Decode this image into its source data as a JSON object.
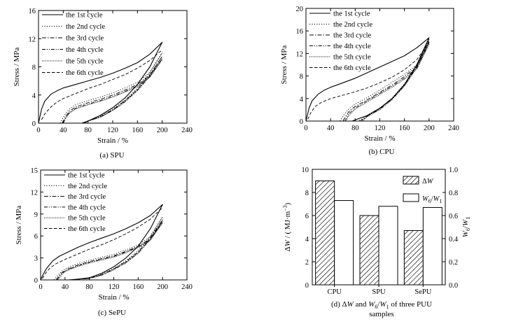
{
  "chart_data": [
    {
      "id": "a",
      "type": "line",
      "caption": "(a) SPU",
      "xlabel": "Strain / %",
      "ylabel": "Stress / MPa",
      "xlim": [
        0,
        240
      ],
      "ylim": [
        0,
        16
      ],
      "xticks": [
        "0",
        "40",
        "80",
        "120",
        "160",
        "200",
        "240"
      ],
      "yticks": [
        "0",
        "4",
        "8",
        "12",
        "16"
      ],
      "legend_position": "top-left",
      "series": [
        {
          "name": "the 1st cycle",
          "style": "solid",
          "x": [
            0,
            5,
            10,
            20,
            30,
            40,
            60,
            80,
            100,
            120,
            140,
            160,
            180,
            200,
            200,
            180,
            160,
            140,
            120,
            100,
            80,
            70
          ],
          "y": [
            0,
            2.0,
            3.1,
            4.1,
            4.6,
            5.0,
            5.5,
            6.0,
            6.5,
            7.1,
            7.8,
            8.6,
            9.8,
            11.5,
            11.5,
            8.0,
            5.5,
            3.6,
            2.2,
            1.1,
            0.3,
            0
          ]
        },
        {
          "name": "the 2nd cycle",
          "style": "dotted",
          "x": [
            35,
            40,
            45,
            50,
            60,
            80,
            100,
            120,
            140,
            160,
            180,
            200,
            200,
            180,
            160,
            140,
            120,
            100,
            80,
            70
          ],
          "y": [
            0,
            0.8,
            1.5,
            2.0,
            2.6,
            3.2,
            3.7,
            4.3,
            5.0,
            5.8,
            7.2,
            10.0,
            10.0,
            7.2,
            5.0,
            3.3,
            2.0,
            1.0,
            0.3,
            0
          ]
        },
        {
          "name": "the 3rd cycle",
          "style": "dashdot",
          "x": [
            38,
            45,
            50,
            60,
            80,
            100,
            120,
            140,
            160,
            180,
            200,
            200,
            180,
            160,
            140,
            120,
            100,
            80,
            72
          ],
          "y": [
            0,
            1.1,
            1.7,
            2.3,
            2.9,
            3.4,
            4.0,
            4.7,
            5.5,
            6.8,
            9.5,
            9.5,
            6.9,
            4.8,
            3.2,
            1.9,
            0.9,
            0.3,
            0
          ]
        },
        {
          "name": "the 4th cycle",
          "style": "dashdotdot",
          "x": [
            40,
            45,
            50,
            60,
            80,
            100,
            120,
            140,
            160,
            180,
            200,
            200,
            180,
            160,
            140,
            120,
            100,
            80,
            74
          ],
          "y": [
            0,
            0.9,
            1.5,
            2.1,
            2.7,
            3.2,
            3.8,
            4.5,
            5.3,
            6.6,
            9.2,
            9.2,
            6.7,
            4.7,
            3.1,
            1.8,
            0.9,
            0.3,
            0
          ]
        },
        {
          "name": "the 5th cycle",
          "style": "densedot",
          "x": [
            40,
            45,
            50,
            60,
            80,
            100,
            120,
            140,
            160,
            180,
            200,
            200,
            180,
            160,
            140,
            120,
            100,
            80,
            75
          ],
          "y": [
            0,
            0.8,
            1.4,
            2.0,
            2.6,
            3.1,
            3.7,
            4.4,
            5.2,
            6.5,
            9.0,
            9.0,
            6.6,
            4.6,
            3.0,
            1.8,
            0.8,
            0.3,
            0
          ]
        },
        {
          "name": "the 6th cycle",
          "style": "dashed",
          "x": [
            5,
            10,
            20,
            30,
            40,
            60,
            80,
            100,
            120,
            140,
            160,
            180,
            200
          ],
          "y": [
            0.5,
            1.3,
            2.3,
            3.0,
            3.5,
            4.2,
            4.9,
            5.5,
            6.2,
            6.9,
            7.8,
            8.9,
            10.4
          ]
        }
      ]
    },
    {
      "id": "b",
      "type": "line",
      "caption": "(b) CPU",
      "xlabel": "Strain / %",
      "ylabel": "Stress / MPa",
      "xlim": [
        0,
        240
      ],
      "ylim": [
        0,
        20
      ],
      "xticks": [
        "0",
        "40",
        "80",
        "120",
        "160",
        "200",
        "240"
      ],
      "yticks": [
        "0",
        "4",
        "8",
        "12",
        "16",
        "20"
      ],
      "legend_position": "top-left",
      "series": [
        {
          "name": "the 1st cycle",
          "style": "solid",
          "x": [
            0,
            5,
            10,
            20,
            30,
            40,
            60,
            80,
            100,
            120,
            140,
            160,
            180,
            200,
            200,
            180,
            160,
            140,
            120,
            100,
            80,
            75
          ],
          "y": [
            0,
            2.3,
            3.6,
            4.8,
            5.5,
            6.0,
            6.8,
            7.6,
            8.6,
            9.6,
            10.6,
            11.6,
            13.0,
            14.8,
            14.8,
            10.0,
            6.5,
            4.0,
            2.3,
            1.0,
            0.2,
            0
          ]
        },
        {
          "name": "the 2nd cycle",
          "style": "dotted",
          "x": [
            55,
            60,
            65,
            70,
            80,
            100,
            120,
            140,
            160,
            180,
            200,
            200,
            180,
            160,
            140,
            120,
            100,
            85
          ],
          "y": [
            0,
            0.8,
            1.6,
            2.2,
            3.0,
            4.2,
            5.5,
            6.9,
            8.3,
            10.0,
            14.5,
            14.5,
            10.0,
            6.6,
            4.1,
            2.3,
            1.0,
            0
          ]
        },
        {
          "name": "the 3rd cycle",
          "style": "dashdot",
          "x": [
            60,
            65,
            70,
            80,
            100,
            120,
            140,
            160,
            180,
            200,
            200,
            180,
            160,
            140,
            120,
            100,
            88
          ],
          "y": [
            0,
            0.9,
            1.7,
            2.6,
            3.8,
            5.1,
            6.4,
            7.9,
            9.7,
            14.2,
            14.2,
            9.8,
            6.4,
            4.0,
            2.2,
            0.9,
            0
          ]
        },
        {
          "name": "the 4th cycle",
          "style": "dashdotdot",
          "x": [
            63,
            70,
            80,
            100,
            120,
            140,
            160,
            180,
            200,
            200,
            180,
            160,
            140,
            120,
            100,
            90
          ],
          "y": [
            0,
            1.3,
            2.3,
            3.6,
            4.9,
            6.2,
            7.6,
            9.4,
            13.9,
            13.9,
            9.6,
            6.3,
            3.9,
            2.1,
            0.9,
            0
          ]
        },
        {
          "name": "the 5th cycle",
          "style": "densedot",
          "x": [
            65,
            70,
            80,
            100,
            120,
            140,
            160,
            180,
            200,
            200,
            180,
            160,
            140,
            120,
            100,
            92
          ],
          "y": [
            0,
            1.0,
            2.1,
            3.4,
            4.7,
            6.0,
            7.4,
            9.2,
            13.6,
            13.6,
            9.4,
            6.2,
            3.8,
            2.0,
            0.8,
            0
          ]
        },
        {
          "name": "the 6th cycle",
          "style": "dashed",
          "x": [
            3,
            8,
            15,
            25,
            40,
            60,
            80,
            100,
            120,
            140,
            160,
            180,
            200
          ],
          "y": [
            0.3,
            1.5,
            2.6,
            3.3,
            4.0,
            4.6,
            5.2,
            5.9,
            6.8,
            7.8,
            9.1,
            10.9,
            14.0
          ]
        }
      ]
    },
    {
      "id": "c",
      "type": "line",
      "caption": "(c) SePU",
      "xlabel": "Strain / %",
      "ylabel": "Stress / MPa",
      "xlim": [
        0,
        240
      ],
      "ylim": [
        0,
        15
      ],
      "xticks": [
        "0",
        "40",
        "80",
        "120",
        "160",
        "200",
        "240"
      ],
      "yticks": [
        "0",
        "3",
        "6",
        "9",
        "12",
        "15"
      ],
      "legend_position": "top-left",
      "series": [
        {
          "name": "the 1st cycle",
          "style": "solid",
          "x": [
            0,
            5,
            10,
            20,
            30,
            40,
            60,
            80,
            100,
            120,
            140,
            160,
            180,
            200,
            200,
            180,
            160,
            140,
            120,
            100,
            80,
            60,
            45
          ],
          "y": [
            0,
            0.9,
            1.6,
            2.6,
            3.2,
            3.6,
            4.4,
            5.1,
            5.7,
            6.3,
            7.0,
            7.8,
            8.8,
            10.3,
            10.3,
            7.0,
            4.6,
            3.0,
            1.8,
            0.9,
            0.3,
            0.1,
            0
          ]
        },
        {
          "name": "the 2nd cycle",
          "style": "dotted",
          "x": [
            22,
            28,
            35,
            45,
            60,
            80,
            100,
            120,
            140,
            160,
            180,
            200,
            200,
            180,
            160,
            140,
            120,
            100,
            80,
            60,
            48
          ],
          "y": [
            0,
            0.6,
            1.2,
            1.7,
            2.2,
            2.7,
            3.1,
            3.5,
            4.1,
            4.8,
            5.9,
            8.6,
            8.6,
            6.0,
            4.0,
            2.6,
            1.6,
            0.8,
            0.3,
            0.1,
            0
          ]
        },
        {
          "name": "the 3rd cycle",
          "style": "dashdot",
          "x": [
            25,
            30,
            35,
            45,
            60,
            80,
            100,
            120,
            140,
            160,
            180,
            200,
            200,
            180,
            160,
            140,
            120,
            100,
            80,
            60,
            50
          ],
          "y": [
            0,
            0.5,
            1.0,
            1.5,
            2.0,
            2.5,
            2.9,
            3.3,
            3.9,
            4.6,
            5.6,
            8.2,
            8.2,
            5.8,
            3.8,
            2.5,
            1.5,
            0.7,
            0.2,
            0.1,
            0
          ]
        },
        {
          "name": "the 4th cycle",
          "style": "dashdotdot",
          "x": [
            27,
            32,
            38,
            45,
            60,
            80,
            100,
            120,
            140,
            160,
            180,
            200,
            200,
            180,
            160,
            140,
            120,
            100,
            80,
            60,
            52
          ],
          "y": [
            0,
            0.6,
            1.1,
            1.4,
            1.9,
            2.4,
            2.8,
            3.2,
            3.8,
            4.5,
            5.5,
            8.0,
            8.0,
            5.6,
            3.7,
            2.4,
            1.4,
            0.7,
            0.2,
            0.1,
            0
          ]
        },
        {
          "name": "the 5th cycle",
          "style": "densedot",
          "x": [
            28,
            33,
            38,
            45,
            60,
            80,
            100,
            120,
            140,
            160,
            180,
            200,
            200,
            180,
            160,
            140,
            120,
            100,
            80,
            60,
            54
          ],
          "y": [
            0,
            0.5,
            1.0,
            1.3,
            1.8,
            2.3,
            2.7,
            3.1,
            3.7,
            4.4,
            5.4,
            7.8,
            7.8,
            5.5,
            3.6,
            2.3,
            1.4,
            0.6,
            0.2,
            0.1,
            0
          ]
        },
        {
          "name": "the 6th cycle",
          "style": "dashed",
          "x": [
            3,
            8,
            15,
            25,
            40,
            60,
            80,
            100,
            120,
            140,
            160,
            180,
            200
          ],
          "y": [
            0.2,
            0.9,
            1.6,
            2.2,
            2.8,
            3.5,
            4.2,
            4.8,
            5.5,
            6.3,
            7.2,
            8.3,
            9.9
          ]
        }
      ]
    },
    {
      "id": "d",
      "type": "bar",
      "caption": "(d) ΔW and W6/W1 of three PUU samples",
      "categories": [
        "CPU",
        "SPU",
        "SePU"
      ],
      "ylabel_left": "ΔW / (MJ·m⁻³)",
      "ylabel_right": "W6/W1",
      "ylim_left": [
        0,
        10
      ],
      "ylim_right": [
        0,
        1.0
      ],
      "yticks_left": [
        "0",
        "2",
        "4",
        "6",
        "8",
        "10"
      ],
      "yticks_right": [
        "0.0",
        "0.2",
        "0.4",
        "0.6",
        "0.8",
        "1.0"
      ],
      "legend_position": "top-right",
      "series": [
        {
          "name": "ΔW",
          "axis": "left",
          "pattern": "hatched",
          "values": [
            9.0,
            6.0,
            4.7
          ]
        },
        {
          "name": "W6/W1",
          "axis": "right",
          "pattern": "open",
          "values": [
            0.73,
            0.68,
            0.67
          ]
        }
      ]
    }
  ]
}
